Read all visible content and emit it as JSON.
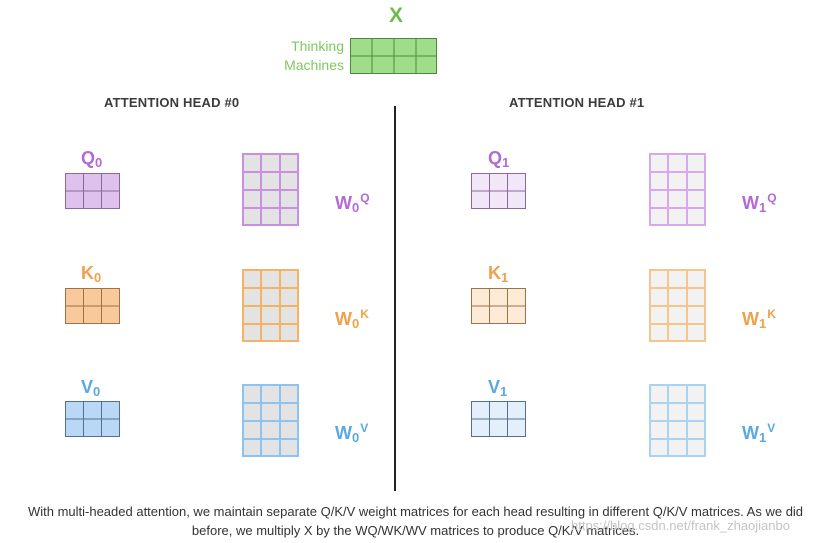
{
  "input": {
    "title": "X",
    "words": [
      "Thinking",
      "Machines"
    ]
  },
  "heads": [
    {
      "title": "ATTENTION HEAD #0",
      "index": "0",
      "q_name": "Q",
      "k_name": "K",
      "v_name": "V",
      "w_name": "W",
      "q_sup": "Q",
      "k_sup": "K",
      "v_sup": "V"
    },
    {
      "title": "ATTENTION HEAD #1",
      "index": "1",
      "q_name": "Q",
      "k_name": "K",
      "v_name": "V",
      "w_name": "W",
      "q_sup": "Q",
      "k_sup": "K",
      "v_sup": "V"
    }
  ],
  "caption": {
    "line1": "With multi-headed attention, we maintain separate Q/K/V weight matrices for each head resulting in different Q/K/V matrices. As we did",
    "line2": "before, we multiply X by the WQ/WK/WV matrices to produce Q/K/V matrices."
  },
  "watermark": "https://blog.csdn.net/frank_zhaojianbo",
  "colors": {
    "x_green": "#6bbd4a",
    "x_fill": "#9fdd8a",
    "q_purple": "#b36ad6",
    "q0_fill": "#dfc1ee",
    "q1_fill": "#f2e6f9",
    "k_orange": "#f0a14a",
    "k0_fill": "#f8c99a",
    "k1_fill": "#fdebd8",
    "v_blue": "#5aa8e4",
    "v0_fill": "#b8d8f5",
    "v1_fill": "#e3effb",
    "w_grey": "#e3e3e3",
    "w_light": "#f2f2f2"
  }
}
